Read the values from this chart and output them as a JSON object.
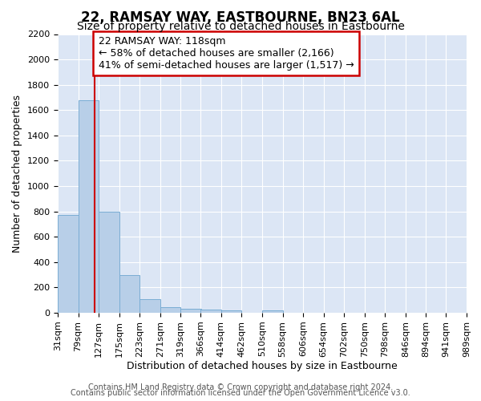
{
  "title": "22, RAMSAY WAY, EASTBOURNE, BN23 6AL",
  "subtitle": "Size of property relative to detached houses in Eastbourne",
  "xlabel": "Distribution of detached houses by size in Eastbourne",
  "ylabel": "Number of detached properties",
  "footer_line1": "Contains HM Land Registry data © Crown copyright and database right 2024.",
  "footer_line2": "Contains public sector information licensed under the Open Government Licence v3.0.",
  "bins": [
    31,
    79,
    127,
    175,
    223,
    271,
    319,
    366,
    414,
    462,
    510,
    558,
    606,
    654,
    702,
    750,
    798,
    846,
    894,
    941,
    989
  ],
  "bar_values": [
    770,
    1680,
    795,
    300,
    110,
    45,
    32,
    25,
    22,
    0,
    20,
    0,
    0,
    0,
    0,
    0,
    0,
    0,
    0,
    0
  ],
  "bar_color": "#b8cfe8",
  "bar_edge_color": "#7aadd4",
  "property_size": 118,
  "property_line_color": "#cc0000",
  "ann_line1": "22 RAMSAY WAY: 118sqm",
  "ann_line2": "← 58% of detached houses are smaller (2,166)",
  "ann_line3": "41% of semi-detached houses are larger (1,517) →",
  "annotation_box_color": "#cc0000",
  "annotation_fill": "#ffffff",
  "ylim": [
    0,
    2200
  ],
  "yticks": [
    0,
    200,
    400,
    600,
    800,
    1000,
    1200,
    1400,
    1600,
    1800,
    2000,
    2200
  ],
  "tick_labels": [
    "31sqm",
    "79sqm",
    "127sqm",
    "175sqm",
    "223sqm",
    "271sqm",
    "319sqm",
    "366sqm",
    "414sqm",
    "462sqm",
    "510sqm",
    "558sqm",
    "606sqm",
    "654sqm",
    "702sqm",
    "750sqm",
    "798sqm",
    "846sqm",
    "894sqm",
    "941sqm",
    "989sqm"
  ],
  "background_color": "#dce6f5",
  "grid_color": "#ffffff",
  "title_fontsize": 12,
  "subtitle_fontsize": 10,
  "axis_label_fontsize": 9,
  "tick_fontsize": 8,
  "footer_fontsize": 7,
  "ann_fontsize": 9
}
